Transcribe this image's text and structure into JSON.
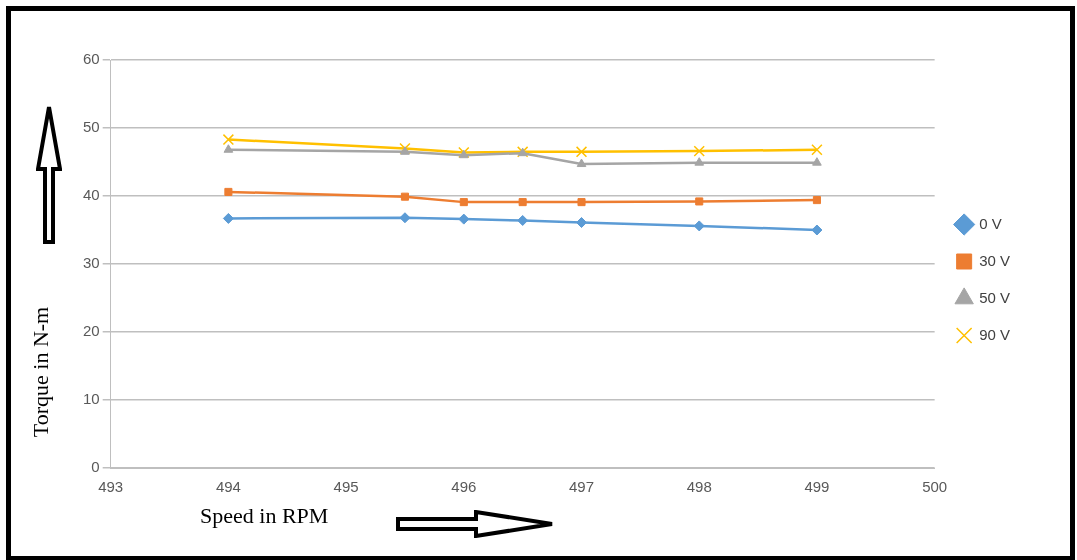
{
  "chart_data": {
    "type": "line",
    "xlabel": "Speed  in RPM",
    "ylabel": "Torque  in N-m",
    "x": [
      494,
      495.5,
      496,
      496.5,
      497,
      498,
      499
    ],
    "xlim": [
      493,
      500
    ],
    "xticks": [
      493,
      494,
      495,
      496,
      497,
      498,
      499,
      500
    ],
    "ylim": [
      0,
      60
    ],
    "yticks": [
      0,
      10,
      20,
      30,
      40,
      50,
      60
    ],
    "grid": "y",
    "legend": "right",
    "line_style": "solid",
    "series": [
      {
        "name": "0 V",
        "color": "#5b9bd5",
        "marker": "diamond",
        "values": [
          36.7,
          36.8,
          36.6,
          36.4,
          36.1,
          35.6,
          35.0
        ]
      },
      {
        "name": "30 V",
        "color": "#ed7d31",
        "marker": "square",
        "values": [
          40.6,
          39.9,
          39.1,
          39.1,
          39.1,
          39.2,
          39.4
        ]
      },
      {
        "name": "50 V",
        "color": "#a5a5a5",
        "marker": "triangle",
        "values": [
          46.8,
          46.5,
          46.0,
          46.3,
          44.7,
          44.9,
          44.9
        ]
      },
      {
        "name": "90 V",
        "color": "#ffc000",
        "marker": "cross",
        "values": [
          48.3,
          47.0,
          46.4,
          46.5,
          46.5,
          46.6,
          46.8
        ]
      }
    ]
  }
}
